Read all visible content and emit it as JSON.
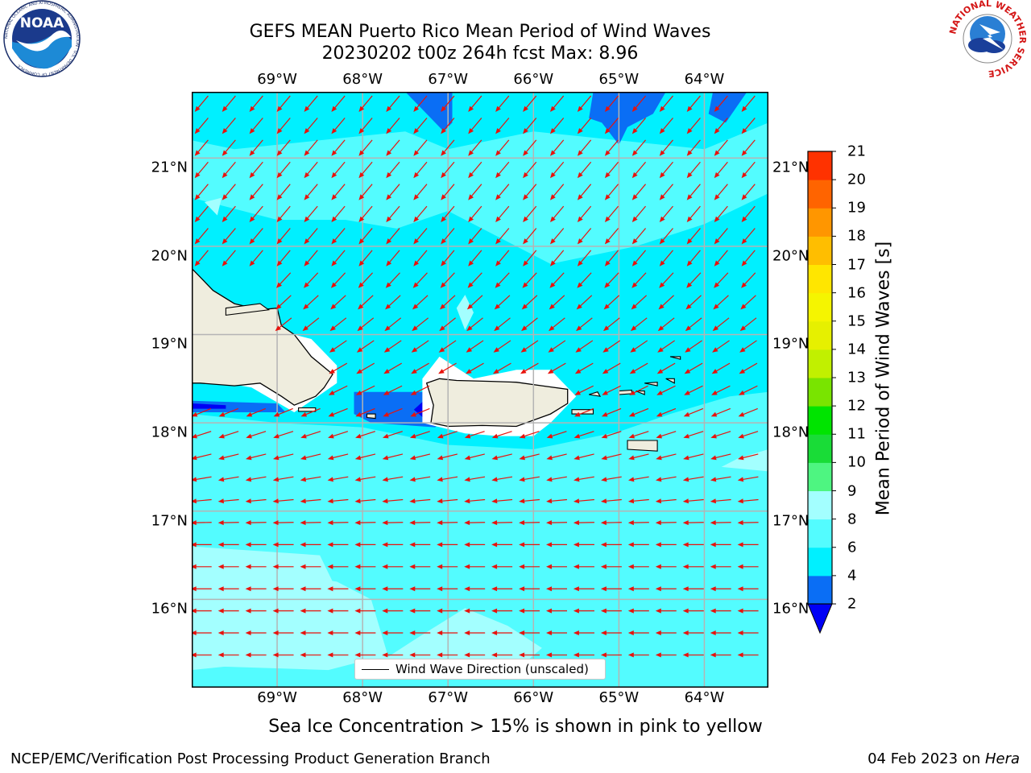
{
  "title": {
    "line1": "GEFS MEAN Puerto Rico Mean Period of Wind Waves",
    "line2": "20230202 t00z 264h fcst   Max: 8.96"
  },
  "logos": {
    "left": "NOAA",
    "left_ring_text": "NATIONAL OCEANIC AND ATMOSPHERIC ADMINISTRATION · U.S. DEPARTMENT OF COMMERCE",
    "right_ring_text": "NATIONAL WEATHER SERVICE"
  },
  "map": {
    "lon_labels": [
      "69°W",
      "68°W",
      "67°W",
      "66°W",
      "65°W",
      "64°W"
    ],
    "lat_labels": [
      "21°N",
      "20°N",
      "19°N",
      "18°N",
      "17°N",
      "16°N"
    ],
    "lon_values": [
      -69,
      -68,
      -67,
      -66,
      -65,
      -64
    ],
    "lat_values": [
      21,
      20,
      19,
      18,
      17,
      16
    ],
    "lon_range": [
      -70.0,
      -63.25
    ],
    "lat_range": [
      15.0,
      21.75
    ],
    "grid": true,
    "land_color": "#efedde",
    "coast_color": "#000000",
    "arrow_color": "#e8120c",
    "arrow_direction": "toward southwest in the north, toward west in the south"
  },
  "legend": {
    "label": "Wind Wave Direction (unscaled)",
    "placement": "bottom-center"
  },
  "colorbar": {
    "label": "Mean Period of Wind Waves [s]",
    "ticks": [
      "2",
      "4",
      "6",
      "8",
      "9",
      "10",
      "11",
      "12",
      "13",
      "14",
      "15",
      "16",
      "17",
      "18",
      "19",
      "20",
      "21"
    ],
    "levels": [
      2,
      4,
      6,
      8,
      9,
      10,
      11,
      12,
      13,
      14,
      15,
      16,
      17,
      18,
      19,
      20,
      21
    ],
    "colors": [
      "#0a6ef5",
      "#00f0ff",
      "#53fcff",
      "#a3ffff",
      "#4ef581",
      "#19dc37",
      "#00e400",
      "#79e400",
      "#c1f000",
      "#e6f000",
      "#f5f500",
      "#ffe600",
      "#ffbe00",
      "#ff9600",
      "#ff6400",
      "#ff3200"
    ],
    "under_color": "#0000f5"
  },
  "chart_data": {
    "type": "heatmap",
    "variable": "Mean Period of Wind Waves",
    "unit": "s",
    "max": 8.96,
    "dominant_range": [
      6,
      8
    ],
    "xlim": [
      -70.0,
      -63.25
    ],
    "ylim": [
      15.0,
      21.75
    ],
    "legend_entries": [
      "Wind Wave Direction (unscaled)"
    ]
  },
  "subtitle": "Sea Ice Concentration > 15% is shown in pink to yellow",
  "footer": {
    "left": "NCEP/EMC/Verification Post Processing Product Generation Branch",
    "right_date": "04 Feb 2023 on ",
    "right_host": "Hera"
  }
}
